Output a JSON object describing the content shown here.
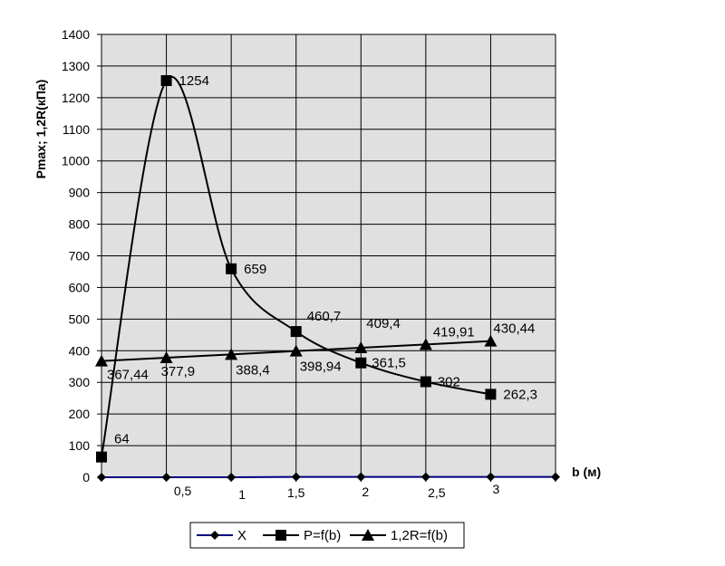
{
  "chart_data": {
    "type": "line",
    "title": "",
    "xlabel": "b (м)",
    "ylabel": "Pmax; 1,2R(кПа)",
    "ylim": [
      0,
      1400
    ],
    "y_ticks": [
      "0",
      "100",
      "200",
      "300",
      "400",
      "500",
      "600",
      "700",
      "800",
      "900",
      "1000",
      "1100",
      "1200",
      "1300",
      "1400"
    ],
    "x_range": [
      0,
      3.5
    ],
    "x_ticks": [
      "0,5",
      "1",
      "1,5",
      "2",
      "2,5",
      "3"
    ],
    "grid": true,
    "plot_background": "#e0e0e0",
    "legend_position": "bottom",
    "series": [
      {
        "name": "X",
        "marker": "diamond",
        "color": "#000080",
        "x": [
          0,
          0.5,
          1,
          1.5,
          2,
          2.5,
          3,
          3.5
        ],
        "values": [
          0,
          0,
          0,
          1,
          1,
          1,
          1,
          1
        ]
      },
      {
        "name": "P=f(b)",
        "marker": "square",
        "color": "#000000",
        "x": [
          0,
          0.5,
          1,
          1.5,
          2,
          2.5,
          3
        ],
        "values": [
          64,
          1254,
          659,
          460.7,
          361.5,
          302,
          262.3
        ],
        "labels": [
          "64",
          "1254",
          "659",
          "460,7",
          "361,5",
          "302",
          "262,3"
        ]
      },
      {
        "name": "1,2R=f(b)",
        "marker": "triangle",
        "color": "#000000",
        "x": [
          0,
          0.5,
          1,
          1.5,
          2,
          2.5,
          3
        ],
        "values": [
          367.44,
          377.9,
          388.4,
          398.94,
          409.4,
          419.91,
          430.44
        ],
        "labels": [
          "367,44",
          "377,9",
          "388,4",
          "398,94",
          "409,4",
          "419,91",
          "430,44"
        ]
      }
    ]
  }
}
